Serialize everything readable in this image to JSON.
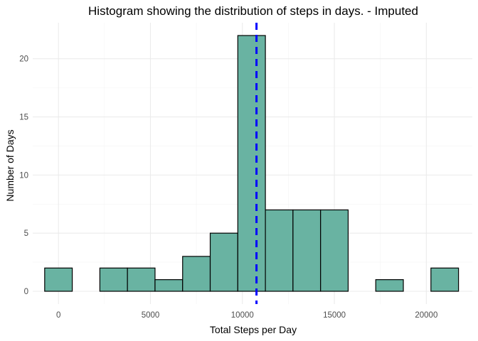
{
  "chart_data": {
    "type": "bar",
    "title": "Histogram showing the distribution of steps in days. - Imputed",
    "xlabel": "Total Steps per Day",
    "ylabel": "Number of Days",
    "xlim": [
      -1400,
      22500
    ],
    "ylim": [
      -1.1,
      23.1
    ],
    "x_ticks": [
      0,
      5000,
      10000,
      15000,
      20000
    ],
    "x_tick_labels": [
      "0",
      "5000",
      "10000",
      "15000",
      "20000"
    ],
    "y_ticks": [
      0,
      5,
      10,
      15,
      20
    ],
    "y_tick_labels": [
      "0",
      "5",
      "10",
      "15",
      "20"
    ],
    "bin_width": 1500,
    "bins": [
      {
        "x": 0,
        "count": 2
      },
      {
        "x": 1500,
        "count": 0
      },
      {
        "x": 3000,
        "count": 2
      },
      {
        "x": 4500,
        "count": 2
      },
      {
        "x": 6000,
        "count": 1
      },
      {
        "x": 7500,
        "count": 3
      },
      {
        "x": 9000,
        "count": 5
      },
      {
        "x": 10500,
        "count": 22
      },
      {
        "x": 12000,
        "count": 7
      },
      {
        "x": 13500,
        "count": 7
      },
      {
        "x": 15000,
        "count": 7
      },
      {
        "x": 16500,
        "count": 0
      },
      {
        "x": 18000,
        "count": 1
      },
      {
        "x": 19500,
        "count": 0
      },
      {
        "x": 21000,
        "count": 2
      }
    ],
    "mean_line": {
      "x": 10766.19,
      "style": "dashed"
    },
    "grid": true,
    "colors": {
      "bar_fill": "#69b3a2",
      "bar_edge": "#000000",
      "mean_line": "#0000ff"
    }
  }
}
